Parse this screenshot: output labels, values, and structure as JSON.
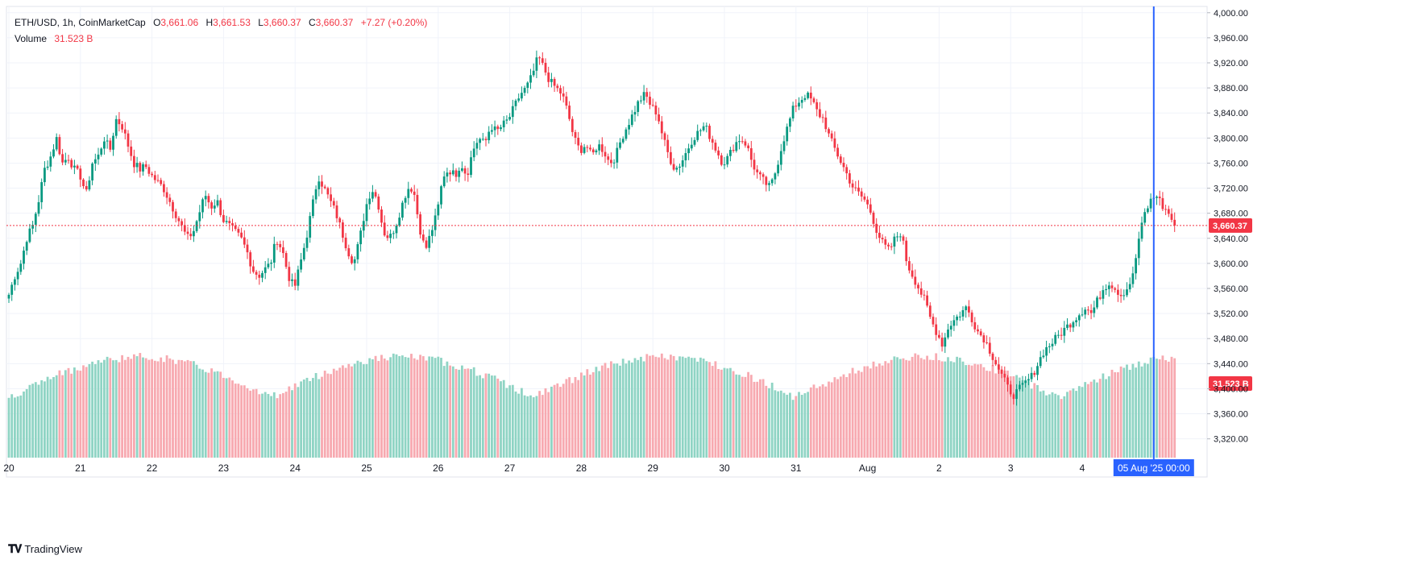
{
  "header": {
    "symbol": "ETH/USD, 1h, CoinMarketCap",
    "open_label": "O",
    "open_value": "3,661.06",
    "high_label": "H",
    "high_value": "3,661.53",
    "low_label": "L",
    "low_value": "3,660.37",
    "close_label": "C",
    "close_value": "3,660.37",
    "change_value": "+7.27 (+0.20%)",
    "volume_label": "Volume",
    "volume_value": "31.523 B"
  },
  "price_tag": {
    "text": "3,660.37",
    "value": 3660.37,
    "color": "#f23645"
  },
  "volume_tag": {
    "text": "31.523 B",
    "color": "#f23645"
  },
  "crosshair_tag": {
    "text": "05 Aug '25   00:00",
    "color": "#2962ff"
  },
  "footer": {
    "brand": "TradingView",
    "logo": "tradingview-logo-icon"
  },
  "colors": {
    "up": "#089981",
    "down": "#f23645",
    "vol_up": "#8fd4c4",
    "vol_down": "#f7a9b0",
    "grid": "#f0f3fa",
    "crosshair": "#2962ff"
  },
  "chart_data": {
    "type": "candlestick",
    "title": "ETH/USD, 1h, CoinMarketCap",
    "xlabel": "",
    "ylabel": "",
    "ylim": [
      3290,
      4010
    ],
    "y_ticks": [
      "4,000.00",
      "3,960.00",
      "3,920.00",
      "3,880.00",
      "3,840.00",
      "3,800.00",
      "3,760.00",
      "3,720.00",
      "3,680.00",
      "3,640.00",
      "3,600.00",
      "3,560.00",
      "3,520.00",
      "3,480.00",
      "3,440.00",
      "3,400.00",
      "3,360.00",
      "3,320.00"
    ],
    "y_tick_values": [
      4000,
      3960,
      3920,
      3880,
      3840,
      3800,
      3760,
      3720,
      3680,
      3640,
      3600,
      3560,
      3520,
      3480,
      3440,
      3400,
      3360,
      3320
    ],
    "x_ticks": [
      "20",
      "21",
      "22",
      "23",
      "24",
      "25",
      "26",
      "27",
      "28",
      "29",
      "30",
      "31",
      "Aug",
      "2",
      "3",
      "4"
    ],
    "x_tick_index": [
      0,
      24,
      48,
      72,
      96,
      120,
      144,
      168,
      192,
      216,
      240,
      264,
      288,
      312,
      336,
      360
    ],
    "crosshair_index": 384,
    "last_price": 3660.37,
    "grid": true,
    "series": [
      {
        "name": "ETH/USD",
        "close_path": [
          3550,
          3580,
          3600,
          3640,
          3660,
          3700,
          3750,
          3770,
          3800,
          3760,
          3770,
          3750,
          3740,
          3710,
          3760,
          3770,
          3800,
          3780,
          3830,
          3820,
          3790,
          3760,
          3750,
          3755,
          3740,
          3730,
          3720,
          3700,
          3680,
          3660,
          3640,
          3650,
          3680,
          3710,
          3690,
          3700,
          3670,
          3660,
          3650,
          3640,
          3620,
          3590,
          3580,
          3590,
          3600,
          3640,
          3620,
          3580,
          3560,
          3600,
          3640,
          3690,
          3740,
          3720,
          3700,
          3680,
          3650,
          3620,
          3600,
          3640,
          3690,
          3720,
          3700,
          3650,
          3640,
          3660,
          3690,
          3720,
          3720,
          3660,
          3620,
          3650,
          3680,
          3740,
          3750,
          3740,
          3760,
          3740,
          3780,
          3800,
          3790,
          3820,
          3810,
          3820,
          3830,
          3850,
          3870,
          3880,
          3900,
          3930,
          3910,
          3890,
          3880,
          3870,
          3840,
          3800,
          3780,
          3790,
          3770,
          3790,
          3780,
          3760,
          3770,
          3800,
          3820,
          3840,
          3860,
          3870,
          3850,
          3840,
          3800,
          3770,
          3750,
          3760,
          3780,
          3800,
          3810,
          3820,
          3800,
          3780,
          3760,
          3770,
          3790,
          3800,
          3790,
          3760,
          3740,
          3730,
          3720,
          3750,
          3790,
          3820,
          3850,
          3860,
          3870,
          3860,
          3840,
          3830,
          3800,
          3780,
          3760,
          3740,
          3720,
          3710,
          3700,
          3680,
          3650,
          3630,
          3620,
          3640,
          3650,
          3600,
          3580,
          3560,
          3540,
          3510,
          3490,
          3470,
          3500,
          3510,
          3520,
          3530,
          3510,
          3490,
          3480,
          3460,
          3440,
          3420,
          3400,
          3390,
          3400,
          3410,
          3420,
          3440,
          3460,
          3470,
          3480,
          3490,
          3500,
          3510,
          3520,
          3530,
          3520,
          3540,
          3560,
          3570,
          3560,
          3550,
          3560,
          3580,
          3640,
          3680,
          3700,
          3710,
          3690,
          3680,
          3660
        ],
        "close_path_note": ""
      }
    ]
  }
}
